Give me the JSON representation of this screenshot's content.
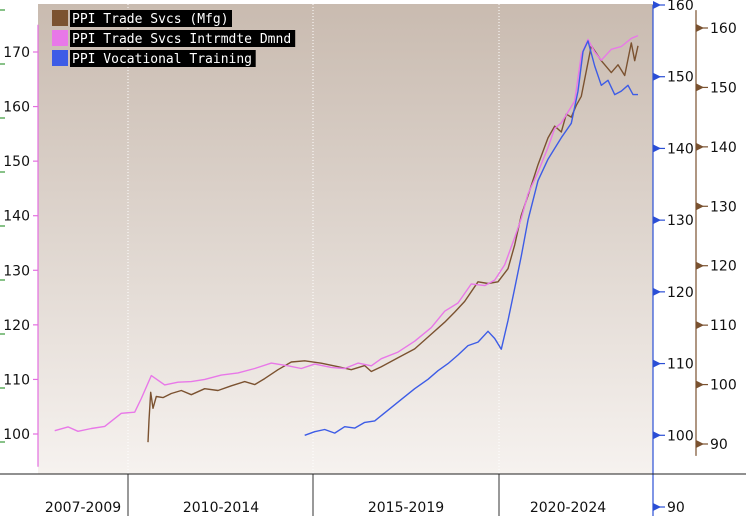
{
  "chart_data": {
    "type": "line",
    "title": "",
    "xlabel": "",
    "ylabel": "",
    "x_categories": [
      "2007-2009",
      "2010-2014",
      "2015-2019",
      "2020-2024"
    ],
    "xlim": [
      2007.0,
      2025.0
    ],
    "axes": {
      "left": {
        "range": [
          94,
          175
        ],
        "ticks": [
          100,
          110,
          120,
          130,
          140,
          150,
          160,
          170
        ],
        "color": "#e36fe0"
      },
      "right_inner": {
        "range": [
          85,
          160
        ],
        "ticks": [
          90,
          100,
          110,
          120,
          130,
          140,
          150,
          160
        ],
        "color": "#2b4fd6"
      },
      "right_outer": {
        "range": [
          88,
          163
        ],
        "ticks": [
          90,
          100,
          110,
          120,
          130,
          140,
          150,
          160
        ],
        "color": "#7a5230"
      }
    },
    "grid": "vertical-dotted",
    "legend_position": "top-left",
    "series": [
      {
        "name": "PPI Trade Svcs (Mfg)",
        "color": "#7b5230",
        "axis": "right_outer",
        "x": [
          2010.3,
          2010.33,
          2010.38,
          2010.45,
          2010.55,
          2010.75,
          2011.0,
          2011.3,
          2011.6,
          2012.0,
          2012.4,
          2012.8,
          2013.2,
          2013.5,
          2013.8,
          2014.2,
          2014.6,
          2015.0,
          2015.5,
          2016.0,
          2016.4,
          2016.8,
          2017.0,
          2017.3,
          2017.8,
          2018.3,
          2018.8,
          2019.2,
          2019.5,
          2019.8,
          2020.2,
          2020.5,
          2020.8,
          2021.1,
          2021.3,
          2021.5,
          2021.7,
          2022.0,
          2022.3,
          2022.5,
          2022.7,
          2022.85,
          2023.0,
          2023.15,
          2023.3,
          2023.6,
          2023.9,
          2024.2,
          2024.4,
          2024.6,
          2024.8,
          2024.9,
          2025.0
        ],
        "values": [
          90.3,
          94.0,
          98.7,
          96.0,
          98.0,
          97.8,
          98.5,
          99.0,
          98.3,
          99.3,
          99.0,
          99.8,
          100.5,
          100.0,
          101.0,
          102.5,
          103.8,
          104.0,
          103.6,
          103.0,
          102.5,
          103.2,
          102.2,
          103.0,
          104.5,
          106.0,
          108.5,
          110.5,
          112.2,
          114.0,
          117.3,
          117.0,
          117.3,
          119.5,
          123.5,
          128.5,
          131.8,
          137.0,
          141.5,
          143.5,
          142.5,
          145.5,
          145.0,
          147.0,
          148.5,
          157.0,
          154.5,
          152.5,
          153.8,
          152.0,
          157.5,
          154.5,
          157.0
        ]
      },
      {
        "name": "PPI Trade Svcs Intrmdte Dmnd",
        "color": "#e878e8",
        "axis": "left",
        "x": [
          2007.5,
          2007.9,
          2008.2,
          2008.6,
          2009.0,
          2009.5,
          2009.9,
          2010.1,
          2010.4,
          2010.8,
          2011.2,
          2011.6,
          2012.0,
          2012.5,
          2013.0,
          2013.5,
          2014.0,
          2014.5,
          2014.9,
          2015.3,
          2015.8,
          2016.2,
          2016.6,
          2017.0,
          2017.3,
          2017.8,
          2018.3,
          2018.8,
          2019.2,
          2019.6,
          2020.0,
          2020.4,
          2020.7,
          2021.0,
          2021.3,
          2021.5,
          2021.7,
          2022.0,
          2022.3,
          2022.5,
          2022.7,
          2022.9,
          2023.1,
          2023.3,
          2023.5,
          2023.7,
          2023.9,
          2024.2,
          2024.5,
          2024.8,
          2025.0
        ],
        "values": [
          100.6,
          101.3,
          100.5,
          101.0,
          101.4,
          103.8,
          104.0,
          106.5,
          110.7,
          109.0,
          109.5,
          109.6,
          110.0,
          110.8,
          111.2,
          112.0,
          113.0,
          112.5,
          112.0,
          112.8,
          112.2,
          112.0,
          113.0,
          112.5,
          113.8,
          115.0,
          117.0,
          119.5,
          122.5,
          124.0,
          127.5,
          127.2,
          128.2,
          131.0,
          136.0,
          139.5,
          144.0,
          148.0,
          152.5,
          156.0,
          157.0,
          159.0,
          161.0,
          169.5,
          172.3,
          170.0,
          168.5,
          170.5,
          171.0,
          172.5,
          173.0
        ]
      },
      {
        "name": "PPI Vocational Training",
        "color": "#3d5ce6",
        "axis": "right_inner",
        "x": [
          2015.0,
          2015.3,
          2015.6,
          2015.9,
          2016.2,
          2016.5,
          2016.8,
          2017.1,
          2017.5,
          2017.9,
          2018.3,
          2018.7,
          2019.0,
          2019.3,
          2019.6,
          2019.9,
          2020.2,
          2020.5,
          2020.7,
          2020.9,
          2021.1,
          2021.3,
          2021.5,
          2021.7,
          2022.0,
          2022.3,
          2022.5,
          2022.7,
          2023.0,
          2023.2,
          2023.35,
          2023.5,
          2023.7,
          2023.9,
          2024.1,
          2024.3,
          2024.5,
          2024.7,
          2024.85,
          2025.0
        ],
        "values": [
          100.0,
          100.5,
          100.8,
          100.3,
          101.2,
          101.0,
          101.8,
          102.0,
          103.5,
          105.0,
          106.5,
          107.8,
          109.0,
          110.0,
          111.2,
          112.5,
          113.0,
          114.5,
          113.5,
          112.0,
          116.0,
          120.5,
          125.0,
          130.0,
          135.5,
          138.5,
          140.0,
          141.5,
          143.5,
          148.0,
          153.5,
          155.0,
          151.5,
          148.8,
          149.5,
          147.5,
          148.0,
          148.8,
          147.5,
          147.5
        ]
      }
    ]
  }
}
